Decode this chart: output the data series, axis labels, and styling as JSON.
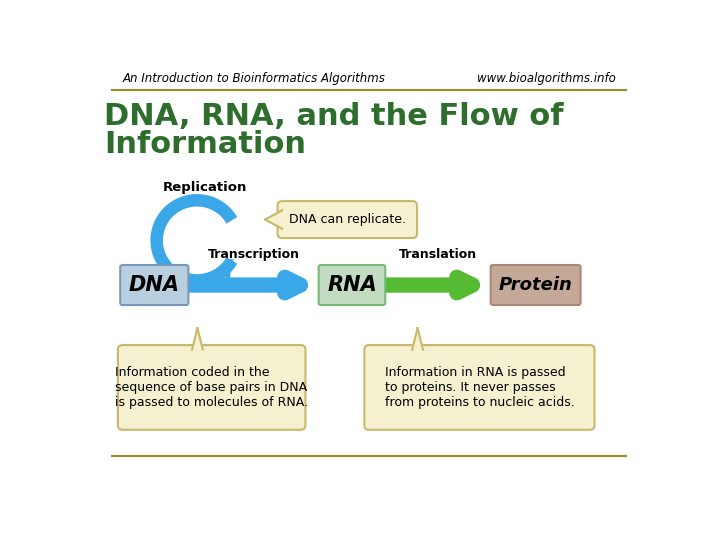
{
  "header_left": "An Introduction to Bioinformatics Algorithms",
  "header_right": "www.bioalgorithms.info",
  "title_line1": "DNA, RNA, and the Flow of",
  "title_line2": "Information",
  "title_color": "#2d6e2d",
  "bg_color": "#ffffff",
  "bar_color": "#9a8b2a",
  "replication_label": "Replication",
  "transcription_label": "Transcription",
  "translation_label": "Translation",
  "dna_box_color": "#b8cfe0",
  "dna_box_text": "DNA",
  "dna_box_border": "#7799bb",
  "rna_box_color": "#c2dcc2",
  "rna_box_text": "RNA",
  "rna_box_border": "#77bb77",
  "protein_box_color": "#c4a898",
  "protein_box_text": "Protein",
  "protein_box_border": "#aa8877",
  "callout_bg": "#f5f0d0",
  "callout_border": "#c8b86a",
  "dna_replicate_text": "DNA can replicate.",
  "info_box1_text": "Information coded in the\nsequence of base pairs in DNA\nis passed to molecules of RNA.",
  "info_box2_text": "Information in RNA is passed\nto proteins. It never passes\nfrom proteins to nucleic acids.",
  "blue_color": "#3aa8e8",
  "green_color": "#55bb33"
}
